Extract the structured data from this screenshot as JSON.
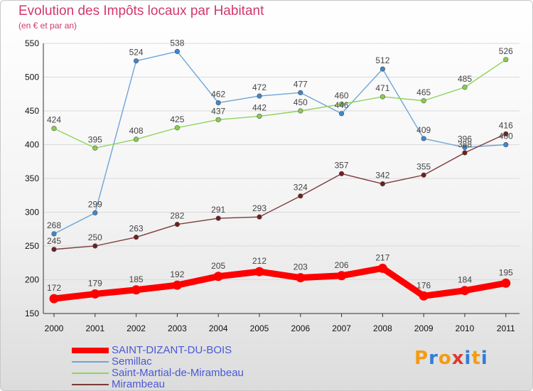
{
  "title": "Evolution des Impôts locaux par Habitant",
  "subtitle": "(en € et par an)",
  "logo": {
    "letters": [
      "P",
      "r",
      "o",
      "x",
      "i",
      "t",
      "i"
    ],
    "colors": [
      "#f39c12",
      "#2f7fd8",
      "#f39c12",
      "#e0392b",
      "#2f7fd8",
      "#f39c12",
      "#2f7fd8"
    ]
  },
  "chart_data": {
    "type": "line",
    "title": "Evolution des Impôts locaux par Habitant",
    "subtitle": "(en € et par an)",
    "xlabel": "",
    "ylabel": "",
    "x": [
      "2000",
      "2001",
      "2002",
      "2003",
      "2004",
      "2005",
      "2006",
      "2007",
      "2008",
      "2009",
      "2010",
      "2011"
    ],
    "ylim": [
      150,
      550
    ],
    "yticks": [
      "150",
      "200",
      "250",
      "300",
      "350",
      "400",
      "450",
      "500",
      "550"
    ],
    "grid": "horizontal",
    "legend_position": "bottom-left",
    "series": [
      {
        "name": "SAINT-DIZANT-DU-BOIS",
        "values": [
          172,
          179,
          185,
          192,
          205,
          212,
          203,
          206,
          217,
          176,
          184,
          195
        ],
        "labels": [
          "172",
          "179",
          "185",
          "192",
          "205",
          "212",
          "203",
          "206",
          "217",
          "176",
          "184",
          "195"
        ],
        "color": "#ff0000",
        "bold": true
      },
      {
        "name": "Semillac",
        "values": [
          268,
          299,
          524,
          538,
          462,
          472,
          477,
          446,
          512,
          409,
          396,
          400
        ],
        "labels": [
          "268",
          "299",
          "524",
          "538",
          "462",
          "472",
          "477",
          "446",
          "512",
          "409",
          "396",
          "400"
        ],
        "color": "#6ea5d8",
        "point_color": "#3f86cf",
        "bold": false
      },
      {
        "name": "Saint-Martial-de-Mirambeau",
        "values": [
          424,
          395,
          408,
          425,
          437,
          442,
          450,
          460,
          471,
          465,
          485,
          526
        ],
        "labels": [
          "424",
          "395",
          "408",
          "425",
          "437",
          "442",
          "450",
          "460",
          "471",
          "465",
          "485",
          "526"
        ],
        "color": "#8fd45a",
        "point_color": "#86cf4c",
        "bold": false
      },
      {
        "name": "Mirambeau",
        "values": [
          245,
          250,
          263,
          282,
          291,
          293,
          324,
          357,
          342,
          355,
          388,
          416
        ],
        "labels": [
          "245",
          "250",
          "263",
          "282",
          "291",
          "293",
          "324",
          "357",
          "342",
          "355",
          "388",
          "416"
        ],
        "color": "#7d3a3a",
        "point_color": "#6e1f1f",
        "bold": false
      }
    ]
  }
}
